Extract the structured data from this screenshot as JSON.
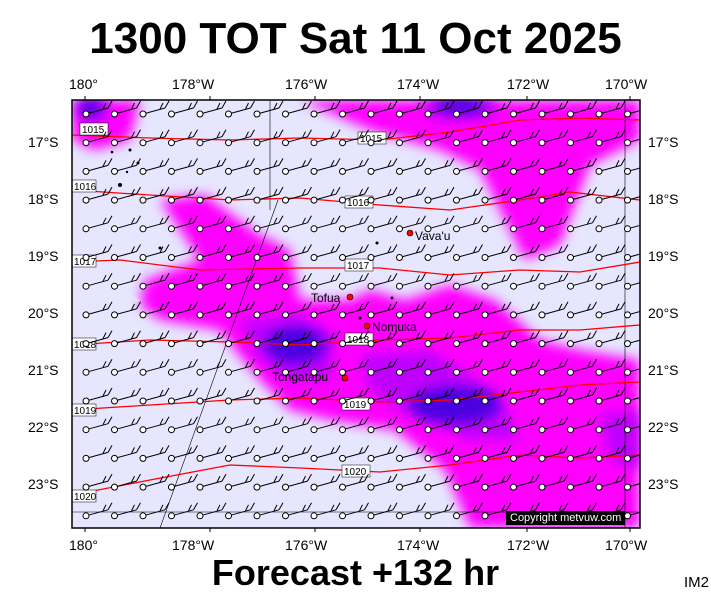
{
  "title": "1300 TOT Sat 11 Oct 2025",
  "subtitle": "Forecast +132 hr",
  "code": "IM2",
  "copyright": "Copyright metvuw.com",
  "axes": {
    "top": [
      "180°",
      "178°W",
      "176°W",
      "174°W",
      "172°W",
      "170°W"
    ],
    "bottom": [
      "180°",
      "178°W",
      "176°W",
      "174°W",
      "172°W",
      "170°W"
    ],
    "left": [
      "17°S",
      "18°S",
      "19°S",
      "20°S",
      "21°S",
      "22°S",
      "23°S"
    ],
    "right": [
      "17°S",
      "18°S",
      "19°S",
      "20°S",
      "21°S",
      "22°S",
      "23°S"
    ]
  },
  "isobars": [
    "1015",
    "1015",
    "1016",
    "1016",
    "1017",
    "1017",
    "1018",
    "1018",
    "1019",
    "1019",
    "1020",
    "1020"
  ],
  "places": [
    "Vava'u",
    "Tofua",
    "Nomuka",
    "Tongatapu"
  ],
  "colors": {
    "background": "#e6e6ff",
    "rain_light": "#ff00ff",
    "rain_mid": "#c000ff",
    "rain_heavy": "#4a00e0",
    "isobar": "#ff0000",
    "place": "#ff0000"
  }
}
